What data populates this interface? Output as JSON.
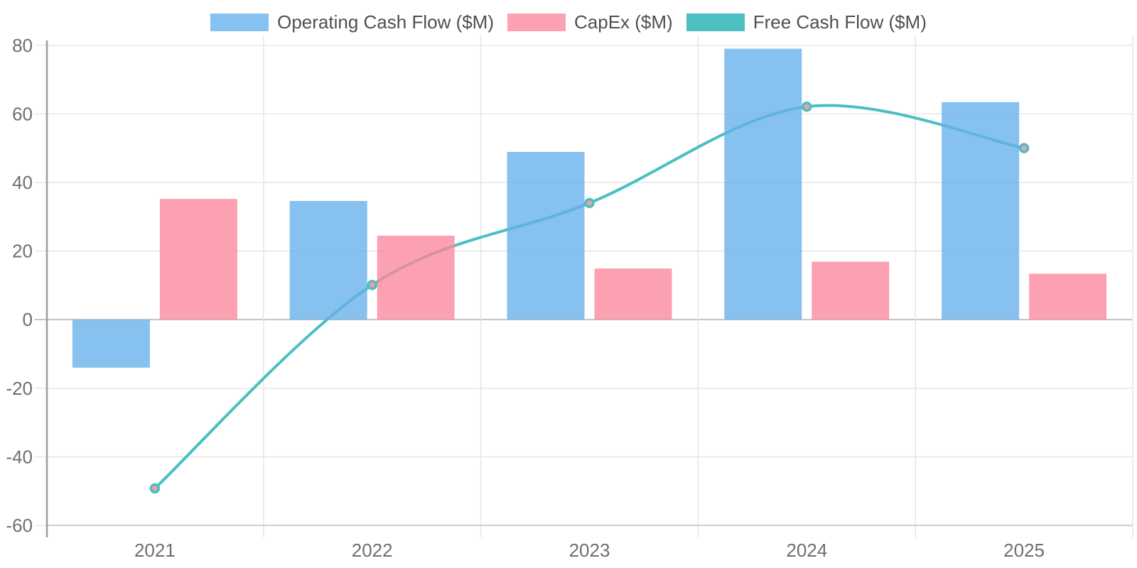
{
  "chart_data": {
    "type": "bar+line",
    "title": "",
    "categories": [
      "2021",
      "2022",
      "2023",
      "2024",
      "2025"
    ],
    "series": [
      {
        "name": "Operating Cash Flow ($M)",
        "type": "bar",
        "color": "#87c1ef",
        "values": [
          -14.0,
          34.6,
          48.9,
          79.0,
          63.4
        ]
      },
      {
        "name": "CapEx ($M)",
        "type": "bar",
        "color": "#fba1b2",
        "values": [
          35.2,
          24.5,
          14.9,
          16.9,
          13.4
        ]
      },
      {
        "name": "Free Cash Flow ($M)",
        "type": "line",
        "color": "#4bbfc2",
        "marker_fill": "#ef9fab",
        "values": [
          -49.2,
          10.1,
          34.0,
          62.1,
          50.0
        ]
      }
    ],
    "xlabel": "",
    "ylabel": "",
    "yticks": [
      80,
      60,
      40,
      20,
      0,
      -20,
      -40,
      -60
    ],
    "y_tick_labels": [
      "80",
      "60",
      "40",
      "20",
      "0",
      "-20",
      "-40",
      "-60"
    ],
    "ylim": [
      -60,
      81.4
    ],
    "grid": true,
    "legend_position": "top",
    "line_smoothing": true,
    "colors": {
      "gridline": "#e7e7e7",
      "zero_line": "#c3c3c3",
      "bottom_border": "#d0d0d0",
      "y_axis_line": "#9c9c9c",
      "tick_label": "#6f6f6f",
      "legend_text": "#4f4f4f",
      "background": "#ffffff"
    }
  }
}
